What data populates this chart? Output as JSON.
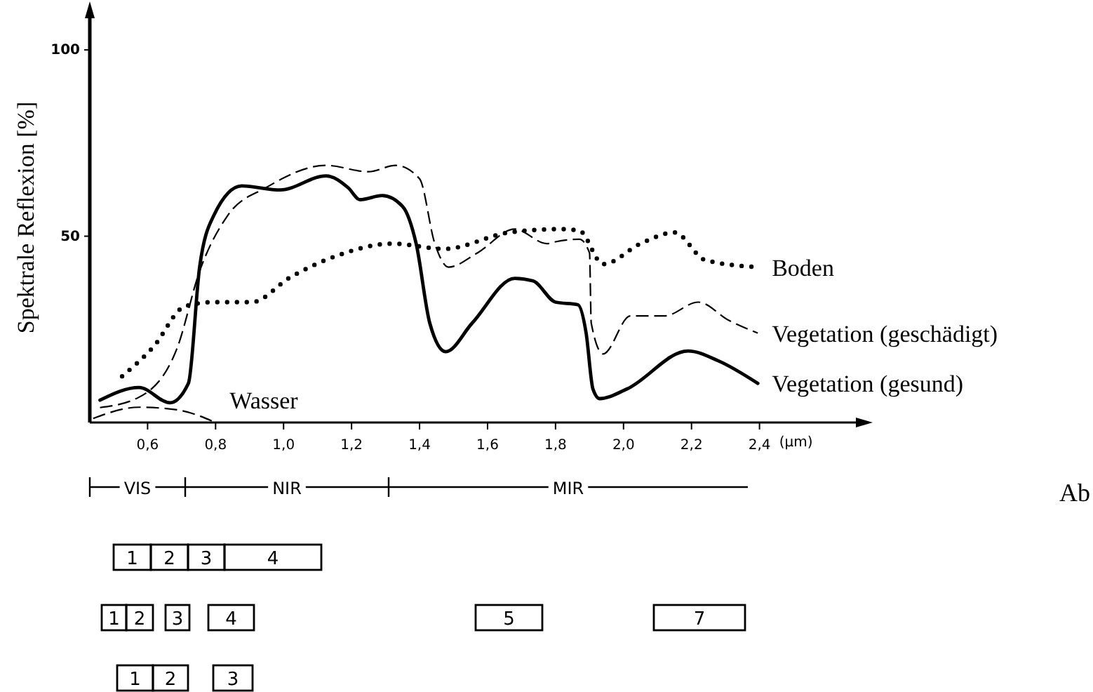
{
  "chart_data": {
    "type": "line",
    "ylabel": "Spektrale Reflexion [%]",
    "xlabel": "(µm)",
    "xlim": [
      0.43,
      2.7
    ],
    "ylim": [
      0,
      110
    ],
    "xticks": [
      {
        "value": 0.6,
        "label": "0,6"
      },
      {
        "value": 0.8,
        "label": "0,8"
      },
      {
        "value": 1.0,
        "label": "1,0"
      },
      {
        "value": 1.2,
        "label": "1,2"
      },
      {
        "value": 1.4,
        "label": "1,4"
      },
      {
        "value": 1.6,
        "label": "1,6"
      },
      {
        "value": 1.8,
        "label": "1,8"
      },
      {
        "value": 2.0,
        "label": "2,0"
      },
      {
        "value": 2.2,
        "label": "2,2"
      },
      {
        "value": 2.4,
        "label": "2,4"
      }
    ],
    "yticks": [
      50,
      100
    ],
    "legend": false,
    "series": [
      {
        "name": "Vegetation (gesund)",
        "color": "#000000",
        "line_style": "solid",
        "x": [
          0.46,
          0.575,
          0.666,
          0.72,
          0.753,
          0.795,
          0.877,
          0.99,
          1.125,
          1.19,
          1.225,
          1.29,
          1.35,
          1.39,
          1.43,
          1.477,
          1.555,
          1.68,
          1.734,
          1.8,
          1.866,
          1.89,
          1.91,
          1.93,
          2.01,
          2.19,
          2.28,
          2.395
        ],
        "values": [
          6,
          9.4,
          5.3,
          10.5,
          41.7,
          55.6,
          63.5,
          62.4,
          66.2,
          63,
          59.8,
          60.9,
          58,
          48,
          26.7,
          19,
          26.7,
          38.7,
          38,
          32.3,
          31.6,
          24,
          9,
          6.4,
          9,
          19.2,
          16.5,
          10.5
        ]
      },
      {
        "name": "Vegetation (geschädigt)",
        "color": "#000000",
        "line_style": "dashed",
        "x": [
          0.46,
          0.575,
          0.687,
          0.753,
          0.836,
          0.948,
          1.125,
          1.25,
          1.33,
          1.4,
          1.445,
          1.485,
          1.57,
          1.68,
          1.775,
          1.8,
          1.87,
          1.9,
          1.905,
          1.94,
          2.02,
          2.12,
          2.22,
          2.31,
          2.395
        ],
        "values": [
          4,
          6.8,
          20,
          40.6,
          55.6,
          63,
          69,
          67.3,
          69,
          65.4,
          48,
          41.7,
          45.5,
          51.9,
          48,
          48.5,
          49.2,
          45.5,
          26.7,
          18.4,
          28.6,
          28.6,
          32.3,
          27.4,
          24
        ]
      },
      {
        "name": "Boden",
        "color": "#000000",
        "line_style": "dotted",
        "x": [
          0.525,
          0.617,
          0.71,
          0.795,
          0.906,
          1.02,
          1.155,
          1.32,
          1.473,
          1.663,
          1.816,
          1.87,
          1.94,
          2.05,
          2.15,
          2.24,
          2.395
        ],
        "values": [
          12.4,
          20.3,
          31.2,
          32.3,
          32.3,
          39,
          44.7,
          48,
          46.6,
          51,
          51.9,
          51.5,
          42.5,
          48,
          51,
          43.6,
          41.7
        ]
      },
      {
        "name": "Wasser",
        "color": "#000000",
        "line_style": "dashed",
        "x": [
          0.44,
          0.575,
          0.687,
          0.8
        ],
        "values": [
          1.1,
          4.1,
          3.4,
          0
        ]
      }
    ],
    "annotations": [
      "Ab",
      "VIS",
      "NIR",
      "MIR",
      "1",
      "2",
      "3",
      "4",
      "1",
      "2",
      "3",
      "4",
      "5",
      "7",
      "1",
      "2",
      "3"
    ]
  }
}
